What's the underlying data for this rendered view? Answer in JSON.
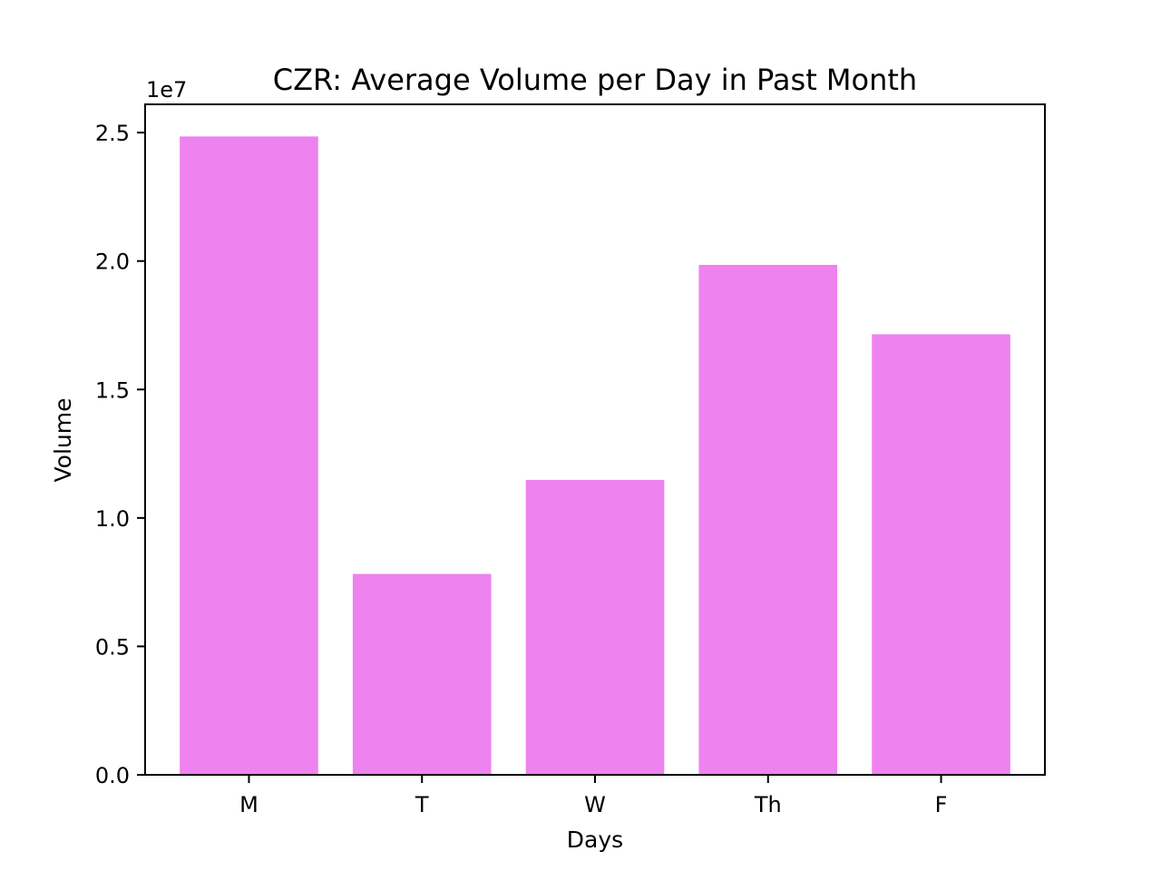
{
  "chart_data": {
    "type": "bar",
    "title": "CZR: Average Volume per Day in Past Month",
    "xlabel": "Days",
    "ylabel": "Volume",
    "offset_label": "1e7",
    "categories": [
      "M",
      "T",
      "W",
      "Th",
      "F"
    ],
    "values": [
      24850000,
      7820000,
      11480000,
      19850000,
      17150000
    ],
    "ylim": [
      0,
      26100000
    ],
    "yticks": [
      0,
      5000000,
      10000000,
      15000000,
      20000000,
      25000000
    ],
    "ytick_labels": [
      "0.0",
      "0.5",
      "1.0",
      "1.5",
      "2.0",
      "2.5"
    ],
    "bar_color": "#ee82ee",
    "grid": false,
    "legend": "none"
  }
}
